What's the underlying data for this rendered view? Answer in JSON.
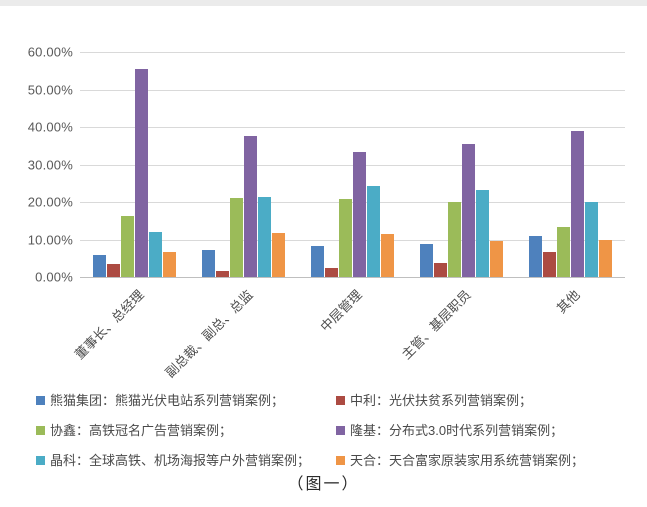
{
  "chart_data": {
    "type": "bar",
    "title": "",
    "xlabel": "",
    "ylabel": "",
    "ylim": [
      0,
      60
    ],
    "grid": true,
    "legend_position": "bottom",
    "yticks": [
      "0.00%",
      "10.00%",
      "20.00%",
      "30.00%",
      "40.00%",
      "50.00%",
      "60.00%"
    ],
    "ytick_values": [
      0,
      10,
      20,
      30,
      40,
      50,
      60
    ],
    "categories": [
      "董事长、总经理",
      "副总裁、副总、总监",
      "中层管理",
      "主管、基层职员",
      "其他"
    ],
    "series": [
      {
        "name": "熊猫集团：熊猫光伏电站系列营销案例；",
        "color": "#4E81BD",
        "values": [
          6.0,
          7.1,
          8.2,
          8.7,
          10.9
        ]
      },
      {
        "name": "中利：光伏扶贫系列营销案例；",
        "color": "#AC4B42",
        "values": [
          3.6,
          1.5,
          2.4,
          3.7,
          6.7
        ]
      },
      {
        "name": "协鑫：高铁冠名广告营销案例；",
        "color": "#9BBB59",
        "values": [
          16.4,
          21.1,
          20.8,
          19.9,
          13.4
        ]
      },
      {
        "name": "隆基：分布式3.0时代系列营销案例；",
        "color": "#8064A2",
        "values": [
          55.5,
          37.7,
          33.3,
          35.4,
          38.9
        ]
      },
      {
        "name": "晶科：全球高铁、机场海报等户外营销案例；",
        "color": "#4BACC6",
        "values": [
          11.9,
          21.3,
          24.4,
          23.3,
          20.0
        ]
      },
      {
        "name": "天合：天合富家原装家用系统营销案例；",
        "color": "#EF9546",
        "values": [
          6.8,
          11.7,
          11.5,
          9.6,
          9.9
        ]
      }
    ]
  },
  "caption": {
    "text": "（图一）"
  }
}
